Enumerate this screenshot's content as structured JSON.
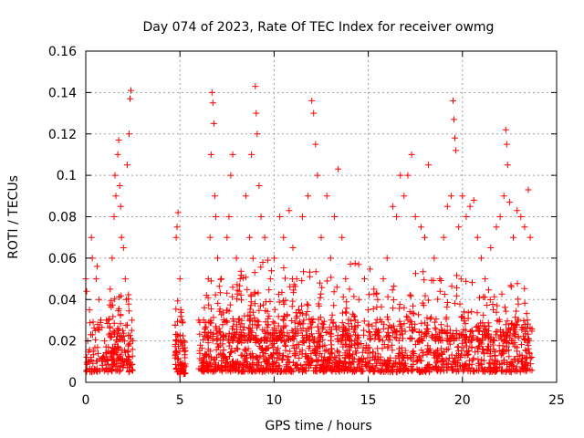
{
  "chart_data": {
    "type": "scatter",
    "title": "Day 074 of 2023, Rate Of TEC Index for receiver owmg",
    "xlabel": "GPS time / hours",
    "ylabel": "ROTI / TECUs",
    "xlim": [
      0,
      25
    ],
    "ylim": [
      0,
      0.16
    ],
    "xticks": [
      0,
      5,
      10,
      15,
      20,
      25
    ],
    "yticks": [
      0,
      0.02,
      0.04,
      0.06,
      0.08,
      0.1,
      0.12,
      0.14,
      0.16
    ],
    "xtick_labels": [
      "0",
      "5",
      "10",
      "15",
      "20",
      "25"
    ],
    "ytick_labels": [
      "0",
      "0.02",
      "0.04",
      "0.06",
      "0.08",
      "0.1",
      "0.12",
      "0.14",
      "0.16"
    ],
    "grid": true,
    "marker": "plus",
    "color": "#ff0000",
    "points": [
      [
        0.0,
        0.05
      ],
      [
        0.05,
        0.044
      ],
      [
        0.1,
        0.02
      ],
      [
        0.2,
        0.035
      ],
      [
        0.3,
        0.07
      ],
      [
        0.35,
        0.06
      ],
      [
        0.4,
        0.015
      ],
      [
        0.5,
        0.025
      ],
      [
        0.55,
        0.05
      ],
      [
        0.6,
        0.056
      ],
      [
        0.7,
        0.04
      ],
      [
        0.8,
        0.03
      ],
      [
        0.9,
        0.012
      ],
      [
        1.0,
        0.02
      ],
      [
        1.1,
        0.03
      ],
      [
        1.2,
        0.015
      ],
      [
        1.3,
        0.045
      ],
      [
        1.4,
        0.06
      ],
      [
        1.5,
        0.08
      ],
      [
        1.55,
        0.1
      ],
      [
        1.6,
        0.09
      ],
      [
        1.7,
        0.11
      ],
      [
        1.75,
        0.117
      ],
      [
        1.8,
        0.095
      ],
      [
        1.85,
        0.085
      ],
      [
        1.9,
        0.07
      ],
      [
        2.0,
        0.065
      ],
      [
        2.1,
        0.05
      ],
      [
        2.15,
        0.04
      ],
      [
        2.2,
        0.105
      ],
      [
        2.3,
        0.12
      ],
      [
        2.35,
        0.137
      ],
      [
        2.4,
        0.141
      ],
      [
        2.45,
        0.03
      ],
      [
        2.5,
        0.02
      ],
      [
        4.8,
        0.07
      ],
      [
        4.85,
        0.075
      ],
      [
        4.9,
        0.082
      ],
      [
        5.0,
        0.05
      ],
      [
        5.05,
        0.035
      ],
      [
        5.1,
        0.03
      ],
      [
        5.2,
        0.02
      ],
      [
        6.0,
        0.03
      ],
      [
        6.3,
        0.036
      ],
      [
        6.5,
        0.05
      ],
      [
        6.6,
        0.07
      ],
      [
        6.65,
        0.11
      ],
      [
        6.7,
        0.14
      ],
      [
        6.75,
        0.135
      ],
      [
        6.8,
        0.125
      ],
      [
        6.85,
        0.09
      ],
      [
        6.9,
        0.08
      ],
      [
        7.0,
        0.06
      ],
      [
        7.2,
        0.05
      ],
      [
        7.5,
        0.07
      ],
      [
        7.6,
        0.08
      ],
      [
        7.7,
        0.1
      ],
      [
        7.8,
        0.11
      ],
      [
        8.0,
        0.06
      ],
      [
        8.2,
        0.05
      ],
      [
        8.5,
        0.09
      ],
      [
        8.7,
        0.07
      ],
      [
        8.8,
        0.11
      ],
      [
        9.0,
        0.143
      ],
      [
        9.05,
        0.13
      ],
      [
        9.1,
        0.12
      ],
      [
        9.2,
        0.095
      ],
      [
        9.3,
        0.08
      ],
      [
        9.5,
        0.07
      ],
      [
        9.8,
        0.05
      ],
      [
        10.0,
        0.06
      ],
      [
        10.3,
        0.08
      ],
      [
        10.5,
        0.07
      ],
      [
        10.8,
        0.083
      ],
      [
        11.0,
        0.065
      ],
      [
        11.2,
        0.05
      ],
      [
        11.5,
        0.08
      ],
      [
        11.8,
        0.09
      ],
      [
        12.0,
        0.136
      ],
      [
        12.1,
        0.13
      ],
      [
        12.2,
        0.115
      ],
      [
        12.3,
        0.1
      ],
      [
        12.5,
        0.07
      ],
      [
        12.8,
        0.09
      ],
      [
        13.0,
        0.06
      ],
      [
        13.2,
        0.08
      ],
      [
        13.4,
        0.103
      ],
      [
        13.6,
        0.07
      ],
      [
        13.8,
        0.05
      ],
      [
        14.0,
        0.045
      ],
      [
        14.3,
        0.03
      ],
      [
        14.5,
        0.04
      ],
      [
        14.8,
        0.05
      ],
      [
        15.0,
        0.035
      ],
      [
        15.3,
        0.045
      ],
      [
        15.5,
        0.04
      ],
      [
        15.8,
        0.05
      ],
      [
        16.0,
        0.06
      ],
      [
        16.3,
        0.085
      ],
      [
        16.5,
        0.08
      ],
      [
        16.7,
        0.1
      ],
      [
        16.9,
        0.09
      ],
      [
        17.1,
        0.1
      ],
      [
        17.3,
        0.11
      ],
      [
        17.5,
        0.08
      ],
      [
        17.8,
        0.075
      ],
      [
        18.0,
        0.07
      ],
      [
        18.2,
        0.105
      ],
      [
        18.5,
        0.06
      ],
      [
        18.8,
        0.05
      ],
      [
        19.0,
        0.07
      ],
      [
        19.2,
        0.085
      ],
      [
        19.4,
        0.09
      ],
      [
        19.5,
        0.136
      ],
      [
        19.55,
        0.127
      ],
      [
        19.6,
        0.118
      ],
      [
        19.65,
        0.112
      ],
      [
        19.8,
        0.075
      ],
      [
        20.0,
        0.09
      ],
      [
        20.2,
        0.08
      ],
      [
        20.4,
        0.085
      ],
      [
        20.6,
        0.088
      ],
      [
        20.8,
        0.07
      ],
      [
        21.0,
        0.06
      ],
      [
        21.2,
        0.05
      ],
      [
        21.5,
        0.065
      ],
      [
        21.8,
        0.075
      ],
      [
        22.0,
        0.08
      ],
      [
        22.2,
        0.09
      ],
      [
        22.3,
        0.122
      ],
      [
        22.35,
        0.115
      ],
      [
        22.4,
        0.105
      ],
      [
        22.5,
        0.087
      ],
      [
        22.7,
        0.07
      ],
      [
        22.9,
        0.083
      ],
      [
        23.1,
        0.08
      ],
      [
        23.3,
        0.075
      ],
      [
        23.5,
        0.093
      ],
      [
        23.6,
        0.07
      ]
    ],
    "baseline_ranges": [
      {
        "x0": 0.0,
        "x1": 2.5,
        "ymin": 0.005,
        "ymax": 0.04,
        "count": 160
      },
      {
        "x0": 1.2,
        "x1": 2.3,
        "ymin": 0.01,
        "ymax": 0.06,
        "count": 60
      },
      {
        "x0": 4.7,
        "x1": 5.3,
        "ymin": 0.004,
        "ymax": 0.045,
        "count": 80
      },
      {
        "x0": 6.0,
        "x1": 23.7,
        "ymin": 0.005,
        "ymax": 0.035,
        "count": 1300
      },
      {
        "x0": 6.3,
        "x1": 14.5,
        "ymin": 0.02,
        "ymax": 0.065,
        "count": 320
      },
      {
        "x0": 15.0,
        "x1": 23.7,
        "ymin": 0.02,
        "ymax": 0.06,
        "count": 260
      }
    ]
  }
}
